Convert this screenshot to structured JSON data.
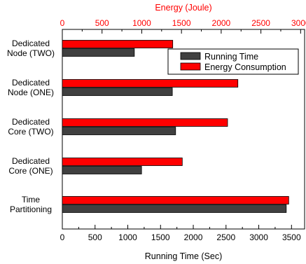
{
  "chart_data": {
    "type": "bar",
    "orientation": "horizontal",
    "categories": [
      [
        "Dedicated",
        "Node (TWO)"
      ],
      [
        "Dedicated",
        "Node (ONE)"
      ],
      [
        "Dedicated",
        "Core (TWO)"
      ],
      [
        "Dedicated",
        "Core (ONE)"
      ],
      [
        "Time",
        "Partitioning"
      ]
    ],
    "series": [
      {
        "name": "Running Time",
        "color": "#404040",
        "axis": "bottom",
        "values": [
          1100,
          1680,
          1730,
          1210,
          3420
        ]
      },
      {
        "name": "Energy Consumption",
        "color": "#ff0000",
        "axis": "top",
        "values": [
          1390,
          2210,
          2080,
          1510,
          2850
        ]
      }
    ],
    "xlabel_bottom": "Running Time (Sec)",
    "xlabel_top": "Energy (Joule)",
    "xlim_bottom": [
      0,
      3700
    ],
    "xlim_top": [
      0,
      3050
    ],
    "xticks_bottom": [
      0,
      500,
      1000,
      1500,
      2000,
      2500,
      3000,
      3500
    ],
    "xticks_top": [
      0,
      500,
      1000,
      1500,
      2000,
      2500,
      3000
    ],
    "grid": false,
    "legend_position": "top-right",
    "colors": {
      "bottom_axis": "#000000",
      "top_axis": "#ff0000"
    }
  }
}
